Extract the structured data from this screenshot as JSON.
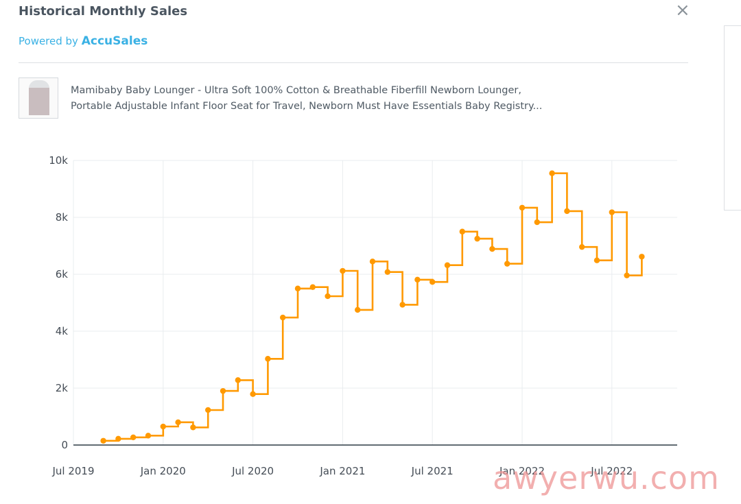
{
  "header": {
    "title": "Historical Monthly Sales",
    "close_icon": "×",
    "powered_prefix": "Powered by",
    "brand": "AccuSales"
  },
  "product": {
    "line1": "Mamibaby Baby Lounger - Ultra Soft 100% Cotton & Breathable Fiberfill Newborn Lounger,",
    "line2": "Portable Adjustable Infant Floor Seat for Travel, Newborn Must Have Essentials Baby Registry..."
  },
  "watermark": "awyerwu.com",
  "colors": {
    "line": "#ff9900",
    "grid": "#e9ecef",
    "axis": "#2e3b45"
  },
  "chart_data": {
    "type": "line",
    "step": "hv",
    "title": "",
    "xlabel": "",
    "ylabel": "",
    "ylim": [
      0,
      10000
    ],
    "xlim": [
      "2019-07",
      "2022-11"
    ],
    "x_ticks": [
      "Jul 2019",
      "Jan 2020",
      "Jul 2020",
      "Jan 2021",
      "Jul 2021",
      "Jan 2022",
      "Jul 2022"
    ],
    "y_ticks": [
      "0",
      "2k",
      "4k",
      "6k",
      "8k",
      "10k"
    ],
    "y_tick_values": [
      0,
      2000,
      4000,
      6000,
      8000,
      10000
    ],
    "series": [
      {
        "name": "Monthly Sales",
        "x": [
          "2019-09",
          "2019-10",
          "2019-11",
          "2019-12",
          "2020-01",
          "2020-02",
          "2020-03",
          "2020-04",
          "2020-05",
          "2020-06",
          "2020-07",
          "2020-08",
          "2020-09",
          "2020-10",
          "2020-11",
          "2020-12",
          "2021-01",
          "2021-02",
          "2021-03",
          "2021-04",
          "2021-05",
          "2021-06",
          "2021-07",
          "2021-08",
          "2021-09",
          "2021-10",
          "2021-11",
          "2021-12",
          "2022-01",
          "2022-02",
          "2022-03",
          "2022-04",
          "2022-05",
          "2022-06",
          "2022-07",
          "2022-08",
          "2022-09"
        ],
        "values": [
          150,
          220,
          270,
          330,
          650,
          800,
          620,
          1230,
          1900,
          2280,
          1790,
          3030,
          4480,
          5500,
          5550,
          5230,
          6120,
          4750,
          6450,
          6080,
          4930,
          5810,
          5730,
          6320,
          7500,
          7250,
          6890,
          6370,
          8340,
          7830,
          9550,
          8220,
          6960,
          6490,
          8180,
          5960,
          6620
        ]
      }
    ]
  }
}
